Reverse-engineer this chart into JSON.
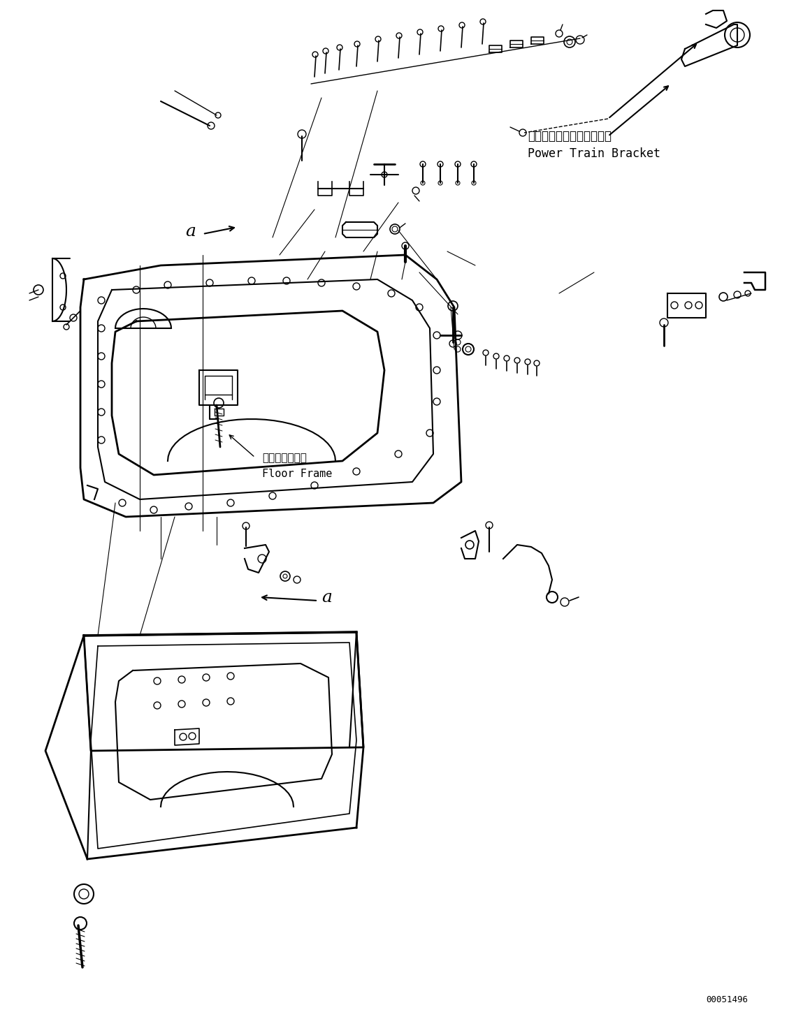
{
  "background_color": "#ffffff",
  "part_number": "00051496",
  "label_power_train_jp": "パワートレインブラケット",
  "label_power_train_en": "Power Train Bracket",
  "label_floor_frame_jp": "フロアフレーム",
  "label_floor_frame_en": "Floor Frame",
  "label_a1": "a",
  "label_a2": "a",
  "line_color": "#000000",
  "text_color": "#000000",
  "fig_width": 11.59,
  "fig_height": 14.59
}
